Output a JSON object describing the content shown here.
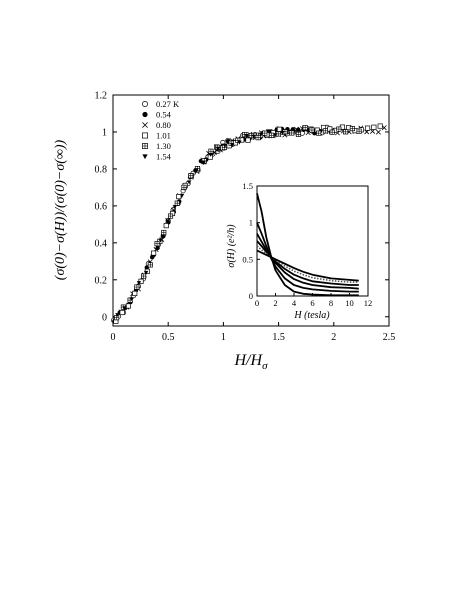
{
  "chart_data": [
    {
      "type": "scatter",
      "xlabel": "H/H",
      "xlabel_sub": "σ",
      "ylabel": "(σ(0)−σ(H))/(σ(0)−σ(∞))",
      "xlim": [
        0,
        2.5
      ],
      "ylim": [
        -0.05,
        1.2
      ],
      "xticks": [
        "0",
        "0.5",
        "1",
        "1.5",
        "2",
        "2.5"
      ],
      "yticks": [
        "0",
        "0.2",
        "0.4",
        "0.6",
        "0.8",
        "1",
        "1.2"
      ],
      "grid": false,
      "legend_position": "top-left",
      "series": [
        {
          "name": "0.27 K",
          "marker": "open-circle"
        },
        {
          "name": "0.54",
          "marker": "filled-circle"
        },
        {
          "name": "0.80",
          "marker": "cross"
        },
        {
          "name": "1.01",
          "marker": "open-square"
        },
        {
          "name": "1.30",
          "marker": "crossed-square"
        },
        {
          "name": "1.54",
          "marker": "filled-triangle-down"
        }
      ],
      "collapse_curve": {
        "x": [
          0,
          0.05,
          0.1,
          0.15,
          0.2,
          0.25,
          0.3,
          0.35,
          0.4,
          0.45,
          0.5,
          0.55,
          0.6,
          0.65,
          0.7,
          0.75,
          0.8,
          0.85,
          0.9,
          0.95,
          1.0,
          1.1,
          1.2,
          1.3,
          1.4,
          1.5,
          1.6,
          1.8,
          2.0,
          2.2,
          2.5
        ],
        "y": [
          -0.02,
          0.0,
          0.04,
          0.08,
          0.13,
          0.19,
          0.25,
          0.31,
          0.38,
          0.44,
          0.51,
          0.58,
          0.64,
          0.7,
          0.75,
          0.79,
          0.83,
          0.86,
          0.89,
          0.91,
          0.93,
          0.95,
          0.97,
          0.98,
          0.99,
          1.0,
          1.0,
          1.01,
          1.01,
          1.01,
          1.02
        ]
      }
    },
    {
      "type": "line",
      "xlabel": "H  (tesla)",
      "ylabel": "σ(H)  (e²/h)",
      "xlim": [
        0,
        12
      ],
      "ylim": [
        0,
        1.5
      ],
      "xticks": [
        "0",
        "2",
        "4",
        "6",
        "8",
        "10",
        "12"
      ],
      "yticks": [
        "0",
        "0.5",
        "1",
        "1.5"
      ],
      "grid": false,
      "series": [
        {
          "style": "solid",
          "x": [
            0,
            0.5,
            1,
            1.5,
            2,
            3,
            4,
            5,
            6,
            8,
            10,
            11
          ],
          "y": [
            1.4,
            1.15,
            0.8,
            0.55,
            0.35,
            0.15,
            0.06,
            0.03,
            0.02,
            0.01,
            0.01,
            0.01
          ]
        },
        {
          "style": "solid",
          "x": [
            0,
            0.5,
            1,
            1.5,
            2,
            3,
            4,
            5,
            6,
            8,
            10,
            11
          ],
          "y": [
            1.0,
            0.85,
            0.68,
            0.52,
            0.4,
            0.24,
            0.15,
            0.11,
            0.09,
            0.07,
            0.06,
            0.06
          ]
        },
        {
          "style": "solid",
          "x": [
            0,
            0.5,
            1,
            1.5,
            2,
            3,
            4,
            5,
            6,
            8,
            10,
            11
          ],
          "y": [
            0.85,
            0.74,
            0.63,
            0.53,
            0.45,
            0.32,
            0.23,
            0.18,
            0.15,
            0.12,
            0.11,
            0.1
          ]
        },
        {
          "style": "solid",
          "x": [
            0,
            0.5,
            1,
            1.5,
            2,
            3,
            4,
            5,
            6,
            8,
            10,
            11
          ],
          "y": [
            0.75,
            0.68,
            0.6,
            0.53,
            0.47,
            0.37,
            0.29,
            0.24,
            0.2,
            0.17,
            0.15,
            0.15
          ]
        },
        {
          "style": "dotted",
          "x": [
            0,
            0.5,
            1,
            1.5,
            2,
            3,
            4,
            5,
            6,
            8,
            10,
            11
          ],
          "y": [
            0.68,
            0.63,
            0.58,
            0.53,
            0.49,
            0.41,
            0.34,
            0.29,
            0.25,
            0.21,
            0.19,
            0.19
          ]
        },
        {
          "style": "solid",
          "x": [
            0,
            0.5,
            1,
            1.5,
            2,
            3,
            4,
            5,
            6,
            8,
            10,
            11
          ],
          "y": [
            0.62,
            0.59,
            0.56,
            0.53,
            0.5,
            0.44,
            0.38,
            0.33,
            0.29,
            0.24,
            0.22,
            0.21
          ]
        }
      ]
    }
  ]
}
